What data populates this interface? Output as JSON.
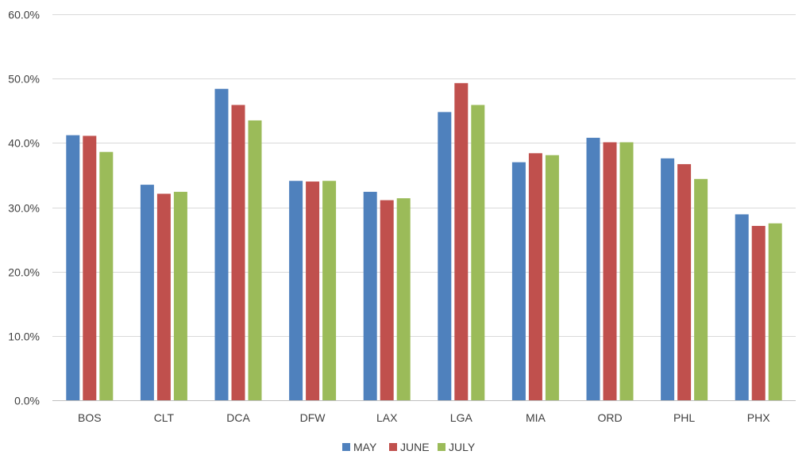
{
  "chart_data": {
    "type": "bar",
    "title": "",
    "xlabel": "",
    "ylabel": "",
    "categories": [
      "BOS",
      "CLT",
      "DCA",
      "DFW",
      "LAX",
      "LGA",
      "MIA",
      "ORD",
      "PHL",
      "PHX"
    ],
    "series": [
      {
        "name": "MAY",
        "color": "#4f81bd",
        "values": [
          41.2,
          33.5,
          48.4,
          34.1,
          32.4,
          44.8,
          37.0,
          40.8,
          37.6,
          28.9
        ]
      },
      {
        "name": "JUNE",
        "color": "#c0504d",
        "values": [
          41.1,
          32.1,
          45.9,
          34.0,
          31.1,
          49.3,
          38.4,
          40.1,
          36.7,
          27.1
        ]
      },
      {
        "name": "JULY",
        "color": "#9bbb59",
        "values": [
          38.6,
          32.4,
          43.5,
          34.1,
          31.4,
          45.9,
          38.1,
          40.1,
          34.4,
          27.5
        ]
      }
    ],
    "ylim": [
      0,
      60
    ],
    "yticks": [
      "0.0%",
      "10.0%",
      "20.0%",
      "30.0%",
      "40.0%",
      "50.0%",
      "60.0%"
    ],
    "grid": true,
    "legend_position": "bottom"
  }
}
